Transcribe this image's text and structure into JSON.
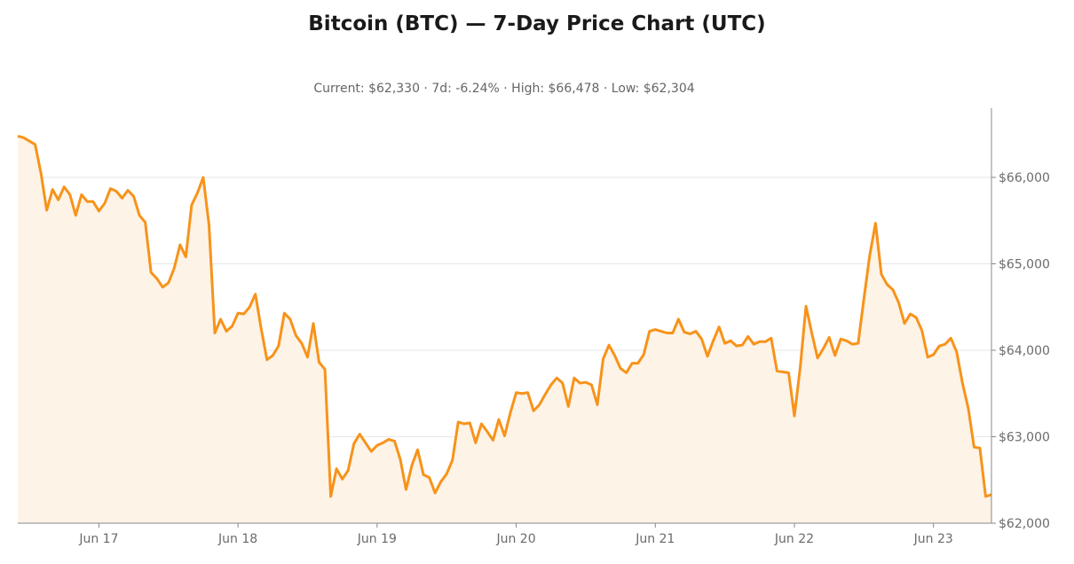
{
  "title": "Bitcoin (BTC) — 7-Day Price Chart (UTC)",
  "subtitle": "Current: $62,330  ·  7d: -6.24%  ·  High: $66,478  ·  Low: $62,304",
  "colors": {
    "line": "#f7931a",
    "fill": "#fdf3e7",
    "grid": "#e6e6e6",
    "axis": "#888888"
  },
  "chart_data": {
    "type": "area",
    "xlabel": "",
    "ylabel": "",
    "ylim": [
      62000,
      66800
    ],
    "grid": true,
    "x_ticks": [
      "Jun 17",
      "Jun 18",
      "Jun 19",
      "Jun 20",
      "Jun 21",
      "Jun 22",
      "Jun 23"
    ],
    "y_ticks": [
      {
        "value": 62000,
        "label": "$62,000"
      },
      {
        "value": 63000,
        "label": "$63,000"
      },
      {
        "value": 64000,
        "label": "$64,000"
      },
      {
        "value": 65000,
        "label": "$65,000"
      },
      {
        "value": 66000,
        "label": "$66,000"
      }
    ],
    "x_start": "2024-06-16T10:00:00Z",
    "x_step_hours": 1,
    "series": [
      {
        "values": [
          66478,
          66460,
          66420,
          66380,
          66050,
          65620,
          65860,
          65740,
          65890,
          65800,
          65560,
          65800,
          65720,
          65720,
          65610,
          65700,
          65870,
          65840,
          65760,
          65850,
          65780,
          65560,
          65480,
          64900,
          64830,
          64730,
          64780,
          64950,
          65220,
          65080,
          65680,
          65820,
          66000,
          65450,
          64200,
          64360,
          64220,
          64280,
          64430,
          64420,
          64500,
          64650,
          64250,
          63890,
          63940,
          64050,
          64430,
          64360,
          64170,
          64080,
          63920,
          64310,
          63860,
          63780,
          62310,
          62630,
          62510,
          62610,
          62920,
          63030,
          62930,
          62830,
          62900,
          62930,
          62970,
          62950,
          62740,
          62390,
          62670,
          62850,
          62560,
          62530,
          62350,
          62480,
          62570,
          62730,
          63170,
          63150,
          63160,
          62930,
          63150,
          63060,
          62960,
          63200,
          63010,
          63280,
          63510,
          63500,
          63510,
          63300,
          63370,
          63490,
          63600,
          63680,
          63620,
          63350,
          63680,
          63620,
          63630,
          63600,
          63370,
          63900,
          64060,
          63940,
          63790,
          63740,
          63850,
          63850,
          63950,
          64220,
          64240,
          64220,
          64200,
          64200,
          64360,
          64210,
          64190,
          64220,
          64130,
          63930,
          64110,
          64270,
          64080,
          64110,
          64050,
          64060,
          64160,
          64070,
          64100,
          64100,
          64140,
          63760,
          63750,
          63740,
          63240,
          63800,
          64510,
          64200,
          63910,
          64020,
          64150,
          63940,
          64130,
          64110,
          64070,
          64080,
          64600,
          65100,
          65470,
          64880,
          64760,
          64700,
          64550,
          64310,
          64420,
          64380,
          64230,
          63920,
          63950,
          64050,
          64070,
          64140,
          63980,
          63620,
          63330,
          62880,
          62870,
          62310,
          62330
        ]
      }
    ]
  }
}
